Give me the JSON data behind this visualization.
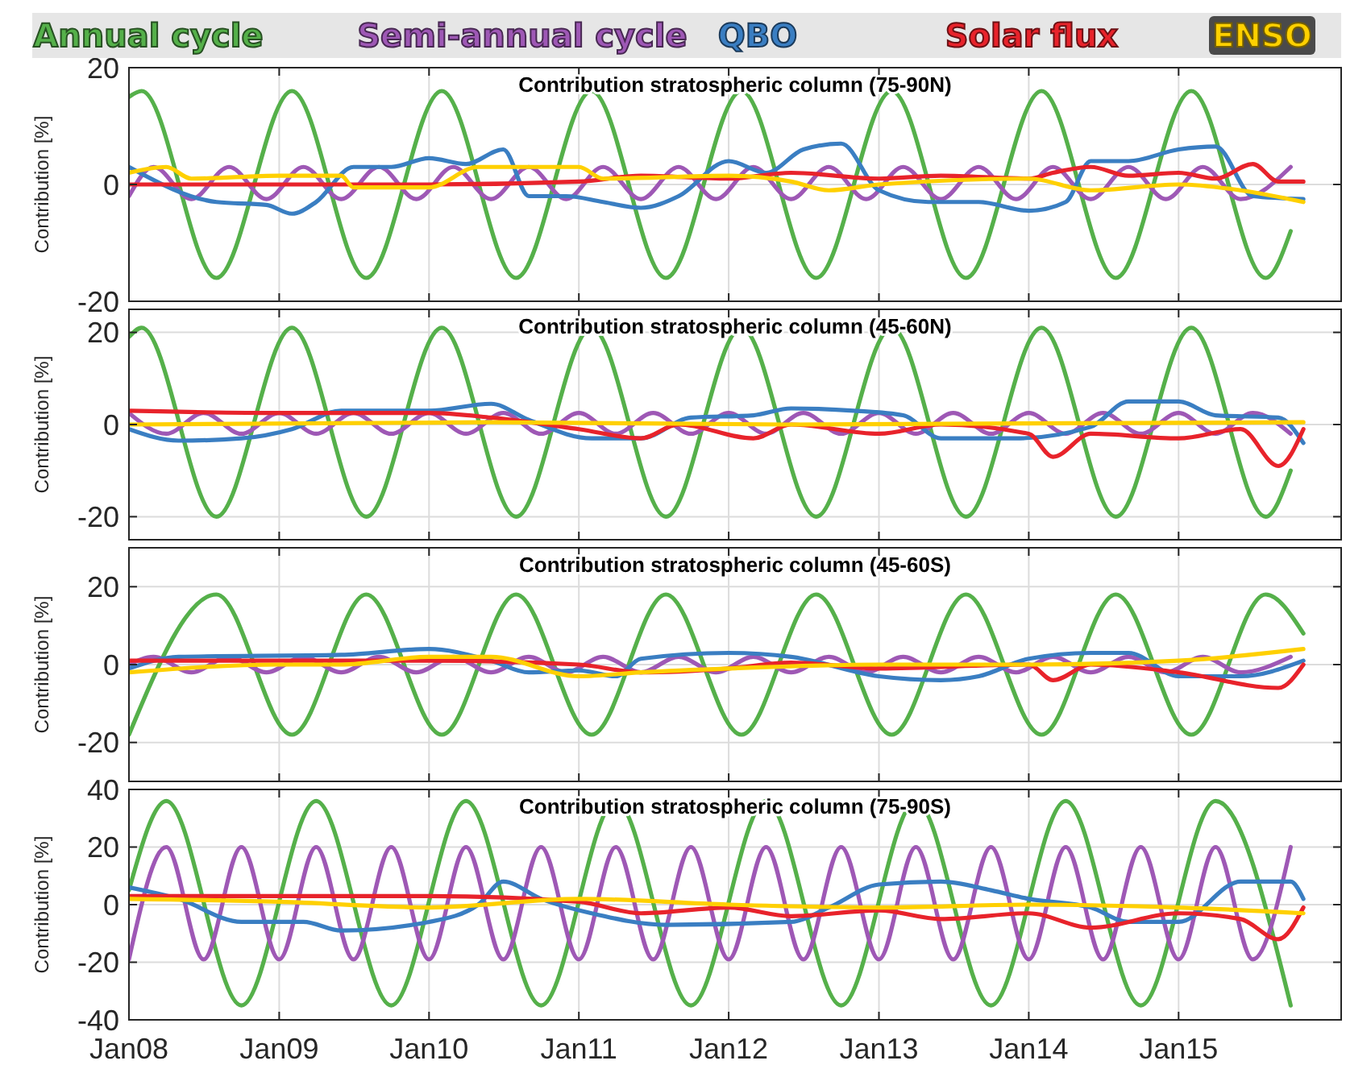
{
  "chart_data": [
    {
      "type": "line",
      "title": "Contribution stratospheric column (75-90N)",
      "ylabel": "Contribution [%]",
      "legend": "top",
      "grid": true,
      "tick_labels": "y",
      "xlim": [
        "2008-01",
        "2016-02"
      ],
      "xticks": [
        {
          "value": "2008-01",
          "label": null
        },
        {
          "value": "2009-01",
          "label": null
        },
        {
          "value": "2010-01",
          "label": null
        },
        {
          "value": "2011-01",
          "label": null
        },
        {
          "value": "2012-01",
          "label": null
        },
        {
          "value": "2013-01",
          "label": null
        },
        {
          "value": "2014-01",
          "label": null
        },
        {
          "value": "2015-01",
          "label": null
        }
      ],
      "ylim": [
        -20,
        20
      ],
      "yticks": [
        -20,
        0,
        20
      ],
      "series": [
        {
          "name": "Annual cycle",
          "color": "#55b04a",
          "x": [
            "2008-01",
            "2008-02",
            "2008-08",
            "2009-02",
            "2009-08",
            "2010-02",
            "2010-08",
            "2011-02",
            "2011-08",
            "2012-02",
            "2012-08",
            "2013-02",
            "2013-08",
            "2014-02",
            "2014-08",
            "2015-02",
            "2015-08",
            "2015-10"
          ],
          "values": [
            15,
            16,
            -16,
            16,
            -16,
            16,
            -16,
            16,
            -16,
            16,
            -16,
            16,
            -16,
            16,
            -16,
            16,
            -16,
            -8
          ]
        },
        {
          "name": "Semi-annual cycle",
          "color": "#9e58b5",
          "x": [
            "2008-01",
            "2008-03",
            "2008-06",
            "2008-09",
            "2008-12",
            "2009-03",
            "2009-06",
            "2009-09",
            "2009-12",
            "2010-03",
            "2010-06",
            "2010-09",
            "2010-12",
            "2011-03",
            "2011-06",
            "2011-09",
            "2011-12",
            "2012-03",
            "2012-06",
            "2012-09",
            "2012-12",
            "2013-03",
            "2013-06",
            "2013-09",
            "2013-12",
            "2014-03",
            "2014-06",
            "2014-09",
            "2014-12",
            "2015-03",
            "2015-06",
            "2015-10"
          ],
          "values": [
            -2,
            3,
            -2.5,
            3,
            -2.5,
            3,
            -2.5,
            3,
            -2.5,
            3,
            -2.5,
            3,
            -2.5,
            3,
            -2.5,
            3,
            -2.5,
            3,
            -2.5,
            3,
            -2.5,
            3,
            -2.5,
            3,
            -2.5,
            3,
            -2.5,
            3,
            -2.5,
            3,
            -2.5,
            3
          ]
        },
        {
          "name": "QBO",
          "color": "#3a7ec2",
          "x": [
            "2008-01",
            "2008-08",
            "2008-12",
            "2009-02",
            "2009-04",
            "2009-07",
            "2009-10",
            "2010-01",
            "2010-04",
            "2010-07",
            "2010-09",
            "2010-12",
            "2011-03",
            "2011-06",
            "2011-09",
            "2012-01",
            "2012-04",
            "2012-07",
            "2012-10",
            "2013-01",
            "2013-05",
            "2013-09",
            "2014-01",
            "2014-04",
            "2014-06",
            "2014-09",
            "2015-01",
            "2015-04",
            "2015-07",
            "2015-11"
          ],
          "values": [
            3,
            -3,
            -3.5,
            -5,
            -3,
            3,
            3,
            4.5,
            3.5,
            6,
            -2,
            -2,
            -3,
            -4,
            -2,
            4,
            2,
            6,
            7,
            -1,
            -3,
            -3,
            -4.5,
            -3,
            4,
            4,
            6,
            6.5,
            -2,
            -2.5
          ]
        },
        {
          "name": "Solar flux",
          "color": "#e8232b",
          "x": [
            "2008-01",
            "2009-01",
            "2010-01",
            "2011-01",
            "2011-06",
            "2012-01",
            "2012-06",
            "2013-01",
            "2013-06",
            "2014-01",
            "2014-03",
            "2014-06",
            "2014-09",
            "2015-01",
            "2015-04",
            "2015-07",
            "2015-09",
            "2015-11"
          ],
          "values": [
            0,
            0,
            0,
            0.5,
            1.5,
            1,
            2,
            1,
            1.5,
            1,
            2,
            3,
            1.5,
            2,
            1,
            3.5,
            0.5,
            0.5
          ]
        },
        {
          "name": "ENSO",
          "color": "#ffd000",
          "x": [
            "2008-01",
            "2008-04",
            "2008-06",
            "2009-01",
            "2009-06",
            "2009-07",
            "2010-01",
            "2010-05",
            "2011-01",
            "2011-03",
            "2012-01",
            "2012-06",
            "2012-09",
            "2013-01",
            "2014-01",
            "2014-06",
            "2015-01",
            "2015-06",
            "2015-11"
          ],
          "values": [
            2,
            3,
            1,
            1.5,
            1.5,
            -0.5,
            -0.5,
            3,
            3,
            1,
            1.5,
            0.5,
            -1,
            0,
            1,
            -1,
            0,
            -1,
            -3
          ]
        }
      ]
    },
    {
      "type": "line",
      "title": "Contribution stratospheric column (45-60N)",
      "ylabel": "Contribution [%]",
      "grid": true,
      "tick_labels": "y",
      "xlim": [
        "2008-01",
        "2016-02"
      ],
      "xticks": [
        {
          "value": "2008-01",
          "label": null
        },
        {
          "value": "2009-01",
          "label": null
        },
        {
          "value": "2010-01",
          "label": null
        },
        {
          "value": "2011-01",
          "label": null
        },
        {
          "value": "2012-01",
          "label": null
        },
        {
          "value": "2013-01",
          "label": null
        },
        {
          "value": "2014-01",
          "label": null
        },
        {
          "value": "2015-01",
          "label": null
        }
      ],
      "ylim": [
        -25,
        25
      ],
      "yticks": [
        -20,
        0,
        20
      ],
      "series": [
        {
          "color": "#55b04a",
          "x": [
            "2008-01",
            "2008-02",
            "2008-08",
            "2009-02",
            "2009-08",
            "2010-02",
            "2010-08",
            "2011-02",
            "2011-08",
            "2012-02",
            "2012-08",
            "2013-02",
            "2013-08",
            "2014-02",
            "2014-08",
            "2015-02",
            "2015-08",
            "2015-10"
          ],
          "values": [
            19,
            21,
            -20,
            21,
            -20,
            21,
            -20,
            21,
            -20,
            21,
            -20,
            21,
            -20,
            21,
            -20,
            21,
            -20,
            -10
          ]
        },
        {
          "color": "#9e58b5",
          "x": [
            "2008-01",
            "2008-04",
            "2008-07",
            "2008-10",
            "2009-01",
            "2009-04",
            "2009-07",
            "2009-10",
            "2010-01",
            "2010-04",
            "2010-07",
            "2010-10",
            "2011-01",
            "2011-04",
            "2011-07",
            "2011-10",
            "2012-01",
            "2012-04",
            "2012-07",
            "2012-10",
            "2013-01",
            "2013-04",
            "2013-07",
            "2013-10",
            "2014-01",
            "2014-04",
            "2014-07",
            "2014-10",
            "2015-01",
            "2015-04",
            "2015-07",
            "2015-10"
          ],
          "values": [
            2.5,
            -2,
            2.5,
            -2,
            2.5,
            -2,
            2.5,
            -2,
            2.5,
            -2,
            2.5,
            -2,
            2.5,
            -2,
            2.5,
            -2,
            2.5,
            -2,
            2.5,
            -2,
            2.5,
            -2,
            2.5,
            -2,
            2.5,
            -2,
            2.5,
            -2,
            2.5,
            -2,
            2.5,
            -2
          ]
        },
        {
          "color": "#3a7ec2",
          "x": [
            "2008-01",
            "2008-05",
            "2008-10",
            "2009-02",
            "2009-06",
            "2010-01",
            "2010-06",
            "2010-09",
            "2011-02",
            "2011-06",
            "2011-10",
            "2012-03",
            "2012-06",
            "2012-11",
            "2013-03",
            "2013-06",
            "2013-12",
            "2014-06",
            "2014-09",
            "2015-01",
            "2015-04",
            "2015-09",
            "2015-11"
          ],
          "values": [
            -1,
            -3.5,
            -3,
            -1,
            3,
            3,
            4.5,
            1,
            -3,
            -3,
            1.5,
            2,
            3.5,
            3,
            2,
            -3,
            -3,
            -0.5,
            5,
            5,
            2,
            1.5,
            -4
          ]
        },
        {
          "color": "#e8232b",
          "x": [
            "2008-01",
            "2009-01",
            "2010-01",
            "2010-06",
            "2011-01",
            "2011-06",
            "2011-09",
            "2012-03",
            "2012-06",
            "2013-01",
            "2013-06",
            "2014-01",
            "2014-03",
            "2014-06",
            "2015-01",
            "2015-06",
            "2015-09",
            "2015-11"
          ],
          "values": [
            3,
            2.5,
            2.5,
            1.5,
            -1,
            -3,
            0,
            -3,
            0,
            -2,
            0,
            -2,
            -7,
            -2,
            -3,
            -1,
            -9,
            -1
          ]
        },
        {
          "color": "#ffd000",
          "x": [
            "2008-01",
            "2010-06",
            "2012-06",
            "2015-11"
          ],
          "values": [
            0,
            0.5,
            0,
            0.5
          ]
        }
      ]
    },
    {
      "type": "line",
      "title": "Contribution stratospheric column (45-60S)",
      "ylabel": "Contribution [%]",
      "grid": true,
      "tick_labels": "y",
      "xlim": [
        "2008-01",
        "2016-02"
      ],
      "xticks": [
        {
          "value": "2008-01",
          "label": null
        },
        {
          "value": "2009-01",
          "label": null
        },
        {
          "value": "2010-01",
          "label": null
        },
        {
          "value": "2011-01",
          "label": null
        },
        {
          "value": "2012-01",
          "label": null
        },
        {
          "value": "2013-01",
          "label": null
        },
        {
          "value": "2014-01",
          "label": null
        },
        {
          "value": "2015-01",
          "label": null
        }
      ],
      "ylim": [
        -30,
        30
      ],
      "yticks": [
        -20,
        0,
        20
      ],
      "series": [
        {
          "color": "#55b04a",
          "x": [
            "2008-01",
            "2008-08",
            "2009-02",
            "2009-08",
            "2010-02",
            "2010-08",
            "2011-02",
            "2011-08",
            "2012-02",
            "2012-08",
            "2013-02",
            "2013-08",
            "2014-02",
            "2014-08",
            "2015-02",
            "2015-08",
            "2015-11"
          ],
          "values": [
            -18,
            18,
            -18,
            18,
            -18,
            18,
            -18,
            18,
            -18,
            18,
            -18,
            18,
            -18,
            18,
            -18,
            18,
            8
          ]
        },
        {
          "color": "#9e58b5",
          "x": [
            "2008-01",
            "2008-03",
            "2008-06",
            "2008-09",
            "2008-12",
            "2009-03",
            "2009-06",
            "2009-09",
            "2009-12",
            "2010-03",
            "2010-06",
            "2010-09",
            "2010-12",
            "2011-03",
            "2011-06",
            "2011-09",
            "2011-12",
            "2012-03",
            "2012-06",
            "2012-09",
            "2012-12",
            "2013-03",
            "2013-06",
            "2013-09",
            "2013-12",
            "2014-03",
            "2014-06",
            "2014-09",
            "2014-12",
            "2015-03",
            "2015-06",
            "2015-10"
          ],
          "values": [
            0,
            2,
            -2,
            2,
            -2,
            2,
            -2,
            2,
            -2,
            2,
            -2,
            2,
            -2,
            2,
            -2,
            2,
            -2,
            2,
            -2,
            2,
            -2,
            2,
            -2,
            2,
            -2,
            2,
            -2,
            2,
            -2,
            2,
            -2,
            2
          ]
        },
        {
          "color": "#3a7ec2",
          "x": [
            "2008-01",
            "2008-05",
            "2009-06",
            "2010-01",
            "2010-06",
            "2010-09",
            "2011-01",
            "2011-04",
            "2011-06",
            "2012-01",
            "2012-06",
            "2013-01",
            "2013-06",
            "2013-09",
            "2014-01",
            "2014-06",
            "2014-09",
            "2015-01",
            "2015-06",
            "2015-11"
          ],
          "values": [
            -1,
            2,
            2.5,
            4,
            1,
            -2,
            -1.5,
            -3,
            1.5,
            3,
            2,
            -3,
            -4,
            -3,
            1.5,
            3,
            3,
            -3,
            -3,
            1
          ]
        },
        {
          "color": "#e8232b",
          "x": [
            "2008-01",
            "2010-01",
            "2011-01",
            "2011-06",
            "2012-01",
            "2012-06",
            "2013-01",
            "2014-01",
            "2014-03",
            "2014-06",
            "2015-01",
            "2015-09",
            "2015-11"
          ],
          "values": [
            1,
            1,
            0,
            -2,
            -1,
            0.5,
            -1,
            0,
            -4,
            0,
            -2,
            -6,
            0
          ]
        },
        {
          "color": "#ffd000",
          "x": [
            "2008-01",
            "2009-01",
            "2009-06",
            "2010-01",
            "2010-06",
            "2011-01",
            "2011-06",
            "2012-01",
            "2013-01",
            "2014-01",
            "2015-01",
            "2015-11"
          ],
          "values": [
            -2,
            0,
            0,
            2,
            2,
            -3,
            -2,
            -1,
            0,
            0,
            1,
            4
          ]
        }
      ]
    },
    {
      "type": "line",
      "title": "Contribution stratospheric column (75-90S)",
      "ylabel": "Contribution [%]",
      "grid": true,
      "xlim": [
        "2008-01",
        "2016-02"
      ],
      "xticks": [
        {
          "value": "2008-01",
          "label": "Jan08"
        },
        {
          "value": "2009-01",
          "label": "Jan09"
        },
        {
          "value": "2010-01",
          "label": "Jan10"
        },
        {
          "value": "2011-01",
          "label": "Jan11"
        },
        {
          "value": "2012-01",
          "label": "Jan12"
        },
        {
          "value": "2013-01",
          "label": "Jan13"
        },
        {
          "value": "2014-01",
          "label": "Jan14"
        },
        {
          "value": "2015-01",
          "label": "Jan15"
        }
      ],
      "ylim": [
        -40,
        40
      ],
      "yticks": [
        -40,
        -20,
        0,
        20,
        40
      ],
      "series": [
        {
          "color": "#55b04a",
          "x": [
            "2008-01",
            "2008-04",
            "2008-10",
            "2009-04",
            "2009-10",
            "2010-04",
            "2010-10",
            "2011-04",
            "2011-10",
            "2012-04",
            "2012-10",
            "2013-04",
            "2013-10",
            "2014-04",
            "2014-10",
            "2015-04",
            "2015-10"
          ],
          "values": [
            5,
            36,
            -35,
            36,
            -35,
            36,
            -35,
            36,
            -35,
            36,
            -35,
            36,
            -35,
            36,
            -35,
            36,
            -35
          ]
        },
        {
          "color": "#9e58b5",
          "x": [
            "2008-01",
            "2008-04",
            "2008-07",
            "2008-10",
            "2009-01",
            "2009-04",
            "2009-07",
            "2009-10",
            "2010-01",
            "2010-04",
            "2010-07",
            "2010-10",
            "2011-01",
            "2011-04",
            "2011-07",
            "2011-10",
            "2012-01",
            "2012-04",
            "2012-07",
            "2012-10",
            "2013-01",
            "2013-04",
            "2013-07",
            "2013-10",
            "2014-01",
            "2014-04",
            "2014-07",
            "2014-10",
            "2015-01",
            "2015-04",
            "2015-07",
            "2015-10"
          ],
          "values": [
            -19,
            20,
            -19,
            20,
            -19,
            20,
            -19,
            20,
            -19,
            20,
            -19,
            20,
            -19,
            20,
            -19,
            20,
            -19,
            20,
            -19,
            20,
            -19,
            20,
            -19,
            20,
            -19,
            20,
            -19,
            20,
            -19,
            20,
            -19,
            20
          ]
        },
        {
          "color": "#3a7ec2",
          "x": [
            "2008-01",
            "2008-05",
            "2008-10",
            "2009-03",
            "2009-06",
            "2010-01",
            "2010-05",
            "2010-07",
            "2010-10",
            "2011-02",
            "2011-08",
            "2012-06",
            "2012-09",
            "2013-01",
            "2013-06",
            "2013-10",
            "2014-01",
            "2014-06",
            "2014-09",
            "2015-01",
            "2015-06",
            "2015-10",
            "2015-11"
          ],
          "values": [
            6,
            2,
            -6,
            -6,
            -9,
            -6,
            0,
            8,
            2,
            -3,
            -7,
            -6,
            -1,
            7,
            8,
            5,
            2,
            -1,
            -6,
            -6,
            8,
            8,
            2
          ]
        },
        {
          "color": "#e8232b",
          "x": [
            "2008-01",
            "2010-01",
            "2011-01",
            "2011-06",
            "2012-01",
            "2012-06",
            "2013-01",
            "2013-06",
            "2014-01",
            "2014-06",
            "2015-01",
            "2015-06",
            "2015-09",
            "2015-11"
          ],
          "values": [
            3,
            3,
            1,
            -3,
            -1,
            -4,
            -2,
            -5,
            -3,
            -8,
            -3,
            -5,
            -12,
            -1
          ]
        },
        {
          "color": "#ffd000",
          "x": [
            "2008-01",
            "2009-01",
            "2010-01",
            "2011-01",
            "2012-01",
            "2013-01",
            "2014-01",
            "2015-01",
            "2015-11"
          ],
          "values": [
            2,
            1,
            -1,
            2,
            0,
            -1,
            0,
            -1,
            -3
          ]
        }
      ]
    }
  ]
}
